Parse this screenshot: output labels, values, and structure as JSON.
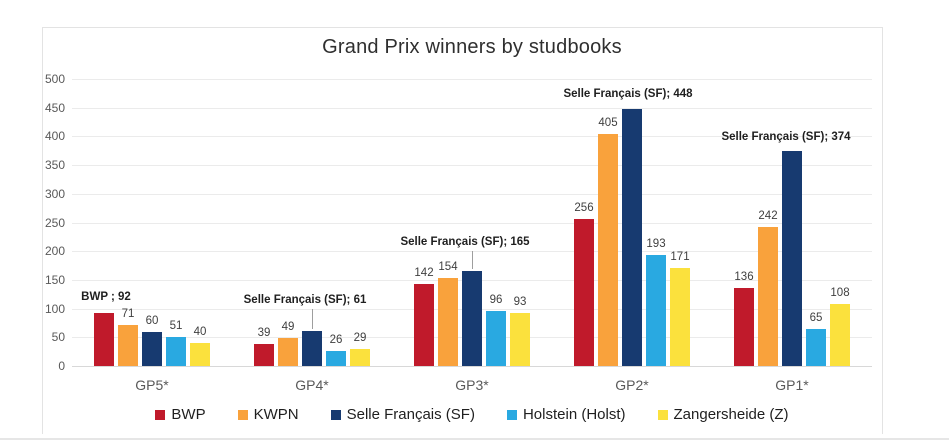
{
  "chart_data": {
    "type": "bar",
    "title": "Grand Prix winners by studbooks",
    "categories": [
      "GP5*",
      "GP4*",
      "GP3*",
      "GP2*",
      "GP1*"
    ],
    "series": [
      {
        "name": "BWP",
        "color": "#c01a2b",
        "values": [
          92,
          39,
          142,
          256,
          136
        ]
      },
      {
        "name": "KWPN",
        "color": "#f9a23c",
        "values": [
          71,
          49,
          154,
          405,
          242
        ]
      },
      {
        "name": "Selle Français (SF)",
        "color": "#173a70",
        "values": [
          60,
          61,
          165,
          448,
          374
        ]
      },
      {
        "name": "Holstein (Holst)",
        "color": "#29a9e1",
        "values": [
          51,
          26,
          96,
          193,
          65
        ]
      },
      {
        "name": "Zangersheide (Z)",
        "color": "#fbe13d",
        "values": [
          40,
          29,
          93,
          171,
          108
        ]
      }
    ],
    "ylabel": "",
    "xlabel": "",
    "ylim": [
      0,
      500
    ],
    "ytick_step": 50,
    "ytick_labels": [
      "0",
      "50",
      "100",
      "150",
      "200",
      "250",
      "300",
      "350",
      "400",
      "450",
      "500"
    ],
    "grid": true,
    "legend_position": "bottom",
    "callouts": [
      {
        "category": 0,
        "series": 0,
        "text": "BWP ; 92",
        "dx": 2,
        "gap": 9,
        "leader": false
      },
      {
        "category": 1,
        "series": 2,
        "text": "Selle Français (SF); 61",
        "dx": -7,
        "gap": 24,
        "leader": true
      },
      {
        "category": 2,
        "series": 2,
        "text": "Selle Français (SF); 165",
        "dx": -7,
        "gap": 22,
        "leader": true
      },
      {
        "category": 3,
        "series": 2,
        "text": "Selle Français (SF); 448",
        "dx": -4,
        "gap": 8,
        "leader": false
      },
      {
        "category": 4,
        "series": 2,
        "text": "Selle Français (SF); 374",
        "dx": -6,
        "gap": 7,
        "leader": false
      }
    ],
    "colors": {
      "gridline": "#ebebeb",
      "axis_line": "#d8d8d8",
      "tick_text": "#595959",
      "value_text": "#3f3f3f",
      "title_text": "#2f2f2f"
    }
  }
}
